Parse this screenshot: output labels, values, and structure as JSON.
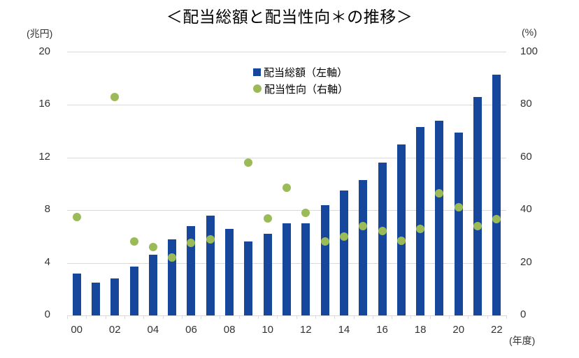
{
  "chart": {
    "title": "＜配当総額と配当性向＊の推移＞",
    "left_axis": {
      "unit": "(兆円)",
      "ticks": [
        20,
        16,
        12,
        8,
        4,
        0
      ],
      "max": 20
    },
    "right_axis": {
      "unit": "(%)",
      "ticks": [
        100,
        80,
        60,
        40,
        20,
        0
      ],
      "max": 100
    },
    "x_axis": {
      "unit": "(年度)",
      "labels": [
        "00",
        "02",
        "04",
        "06",
        "08",
        "10",
        "12",
        "14",
        "16",
        "18",
        "20",
        "22"
      ]
    },
    "legend": {
      "items": [
        {
          "label": "配当総額（左軸）",
          "marker": "square",
          "color": "#17479D"
        },
        {
          "label": "配当性向（右軸）",
          "marker": "circle",
          "color": "#9BBB59"
        }
      ]
    },
    "colors": {
      "bar": "#17479D",
      "dot": "#9BBB59",
      "grid": "#D9D9D9",
      "text": "#333333"
    }
  },
  "chart_data": {
    "type": "bar",
    "title": "＜配当総額と配当性向＊の推移＞",
    "categories": [
      "00",
      "01",
      "02",
      "03",
      "04",
      "05",
      "06",
      "07",
      "08",
      "09",
      "10",
      "11",
      "12",
      "13",
      "14",
      "15",
      "16",
      "17",
      "18",
      "19",
      "20",
      "21",
      "22"
    ],
    "series": [
      {
        "name": "配当総額（左軸）",
        "type": "bar",
        "axis": "left",
        "unit": "兆円",
        "color": "#17479D",
        "values": [
          3.2,
          2.5,
          2.8,
          3.7,
          4.6,
          5.8,
          6.8,
          7.6,
          6.6,
          5.6,
          6.2,
          7.0,
          7.0,
          8.4,
          9.5,
          10.3,
          11.6,
          13.0,
          14.3,
          14.8,
          13.9,
          16.6,
          18.3
        ]
      },
      {
        "name": "配当性向（右軸）",
        "type": "scatter",
        "axis": "right",
        "unit": "%",
        "color": "#9BBB59",
        "values": [
          37.5,
          null,
          83,
          28,
          26,
          22,
          27.5,
          29,
          null,
          58,
          37,
          48.5,
          39,
          28,
          30,
          34,
          32,
          28.5,
          33,
          46.5,
          41,
          34,
          36.5
        ]
      }
    ],
    "xlabel": "年度",
    "ylabel_left": "兆円",
    "ylabel_right": "%",
    "ylim_left": [
      0,
      20
    ],
    "ylim_right": [
      0,
      100
    ],
    "grid": true,
    "legend_position": "top-center-inside"
  }
}
